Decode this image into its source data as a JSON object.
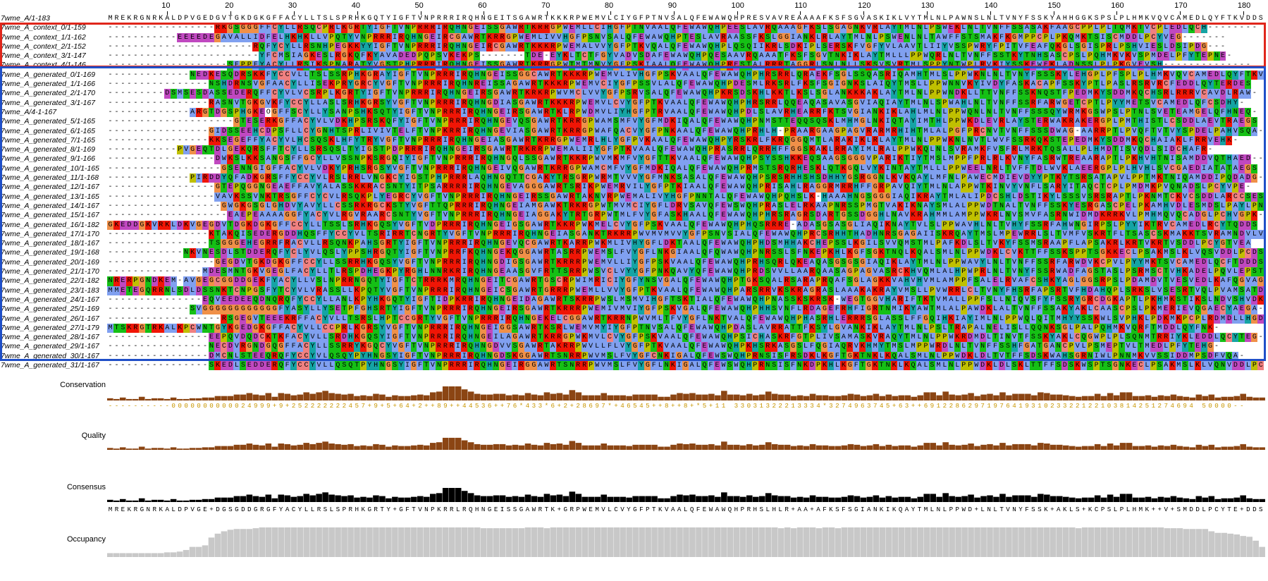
{
  "ruler": {
    "ticks": [
      "10",
      "20",
      "30",
      "40",
      "50",
      "60",
      "70",
      "80",
      "90",
      "100",
      "110",
      "120",
      "130",
      "140",
      "150",
      "160",
      "170",
      "180"
    ]
  },
  "rows": [
    {
      "name": "7wme_A/1-183",
      "seq": "MREKRGNRKALDPVGEDGVTGKDGKGFFACYLLTSLSPRHKGQTYIGFTVNPRRRIRQHNGEITSGAWRTKKKRPWEMVLCIYGFPTNVSALQFEWAWQHPRESVAVREAAAAFKSFSGVASKIKLVYTMLNLPAWNSLNLTVNYFSSKYAHHGGKSPSLPLHMKVQVCAMEDLQYFTKVDDS"
    },
    {
      "name": "7wme_A_context_0/1-159",
      "seq": "-----------------RKGSGGGFFCYLLRSQCPRLKGRTYIGFTVNPRRRIRQHNGEISSGAWRTKRRGPWEMLLCIHGFPTNVAALQFEWAWQHPEESLAVRQAAAGFKSLSGAGNKVRLAYTMLNLPSWEKLNLTVNFFSSASAKFAAGCPPLPLTQMKTVCPLEDLQCH--------"
    },
    {
      "name": "7wme_A_context_1/1-162",
      "seq": "-----------EEEEDEGAVALLIDFELHKHKLLVPQTYVNPRRRIRQHNGEIRCGAWRTKRRGPWEMLIVVHGFPSNVSALQFEWAWQHPTESLAVRAASSFKSLGGIANKLRLAYTMLNLPSWENLNLTAWFFSTSMAKFKGMPPCPLPKQMKTSISCMDDLPCYVEG-------"
    },
    {
      "name": "7wme_A_context_2/1-152",
      "seq": "-----------------------RQFYCYLLRSNHPEGKKYYIGFTVNPRRRIRQHNGEIRCGAWRTKKKRPWEMALVVYGFPTKVQALQFEWAWQHPLQSQIIKRLSDKIPLSERSKFVGFYVLAAVTLIIYVSSPWRYFPITVFEAFQKGLSGISPRLPSHVIESLDSIPDG---"
    },
    {
      "name": "7wme_A_context_3/1-147",
      "seq": "------------------------YFCMSIAGKESLRGKQFKYAVADEDPQPSVKEKPS-------TDE-EYKLTCTFGYVADVSDAFEWAWQHPQESAAVRQAAATFKSFSGVTNKIKLAYTMLLLPPWQRLNLTVNFFSSTKYTNHSASCPSLPQHMKVKVSPMDELPFYTEPNE-"
    },
    {
      "name": "7wme_A_context_4/1-146",
      "seq": "-------------------SFPPFYACYLLRSIKSPNARATYVGSTPHPRRRIRQHNGEISSGAWRTKRRGPWTMTMNVYGFPSKIAALQFEWAWQHPRESTALRRRTAGGRLSNLNLLSKSVSVRTMLSPPYNTWPLRVKIYSSKEWEKLADNSSLPLPKGVEVSH--------------"
    },
    {
      "name": "7wme_A_generated_0/1-169",
      "seq": "-------------NEDKESQDRSKKFYCCVLLTSLSSRPHKGRAYIGFTVNPRRRIRQHNGEISSGGCAWRTKKKRPWEMVLIVHGFPSKVAALQFEWAWQHPHRSRRLQRAEKFSGLSSQASRIQAMHTMLSLPPWKNLNLTVNYFSSSKYLEHGPLPFSPLPLHMKVQVCAMEDLQYFTKVDDS"
    },
    {
      "name": "7wme_A_generated_1/1-166",
      "seq": "----------------NSHDRNSVGFAACYLLISEKPRYGRCYVGFTVNPRRRIRQHNREISSAGAWRTKKKRPWEMVCIYGFPSSVLALQFEWAWQHPDESMLRKSRLFKSFSGIGNKSLAIQYTMSLLPPWNNVKYIVDYFASKACAPFSSKYPTLPASLRSRVRCFEDDLQYTERDES"
    },
    {
      "name": "7wme_A_generated_2/1-170",
      "seq": "---------DSMSESDASSEDERQFFCYVLVCSRPLKGRTYIGFTVNPRRRIRQHNGEIRSGAWRTKRKRPWVMCLVVYGFPSRVSALQFEWAWQHPKRSDSKHLKKTLKSLSGLANKKKAKLAYTMLNLPPWNDKLLTTVNFFSSKNQSTFPEDMKYSDDMKQCHSRLRRRVCAVDLRAW-"
    },
    {
      "name": "7wme_A_generated_3/1-167",
      "seq": "----------------RASNVTGKGVKFYCCYLLASLSRHKGRSYVGFTVNPRRRIRQHNGDIASGAWRTKKKRPWEMVLCVYGFPTKVAALQFEWAWQHPHRSRRLQQEAQASAVASGVIAQIAYTMLNLSPWAHLNLTVNFFSSRFARWGETCPTLPYYMETSVCAMEDLQFCSDHY-"
    },
    {
      "name": "7wme_A/4-1-167",
      "seq": "-------------ARGTDGSPHGKEOGFFSCYLLYSANPSHKSQTYIGFTVNPRRRIRQHNGEIRSGAWRTKLRPWDMVLIYHGFPTRVAALQFEWAWQHPDLSLAVRHEARRFKTSVGIANKIKLAHLMLNLPPWQNLNLTVNFFSSSQYWRMKGSWPSLPTNLSVETEAMGELQFHNEQ-"
    },
    {
      "name": "7wme_A_generated_5/1-165",
      "seq": "--------------------GTESERKGFFACYVLVDKHPSRSKQFYIGFTVNPRRRIRQHNGEVQSGAWRTKRRGPWAMSMFVYGFMDKIQALQFEWAWQHPNMSTTEQQSQSKLMHMGLNKIQTAYIMTHLPPWKDLEVRLAYSTERWAKRAKERGPLPMTHISTLCSDDLAEVTRAEGS"
    },
    {
      "name": "7wme_A_generated_6/1-165",
      "seq": "----------------GIDSSEEHCDPSFLLCYGNHTSPRLIVIVTELFTVNPKRRIRQHNGEVIASGAWRTKRRGPWAFQACVYGFPNKAALQFEWAWQHPRHLH-PRAARGAAGPAGVRARMRHIHTMLALPGFPRCNVTVNFFSSSDWAG-AARRPTLPVQFTVTVYSPDELPAHVSQA-"
    },
    {
      "name": "7wme_A_generated_7/1-165",
      "seq": "----------------KKSEGEFFYACYVLHCSQSKLHFYTRYVGFTVNPRRRIRQHNGEIASGAWRTKRRGPWEMRLHLYGFPVKAALQFEWAWQHPYRSKRLFKRQGGQMTLARAKIKLRLAYTMLNLPPWKNLNVTLWVFSSRKQKSTEPEDMKYSDDMKQCHAIAKLFRRVEHK-"
    },
    {
      "name": "7wme_A_generated_8/1-169",
      "seq": "-----------PVGEQTDLGEKQRSFFTCYLLSRSQSLTYIGSTPDPRRRIRQHNGEIRSGAWRTRKRRPWEMALIIYGFPTKVAALQFEWAWQHPRASRRLQRRHFFGGSKAKLRRAYIMLRALPPWKQLNLSVRAMKFVSFRLMRKTQSALLPLHMDTISVQDLSIDCHAFR-"
    },
    {
      "name": "7wme_A_generated_9/1-166",
      "seq": "-----------------DWKSLKKSANGSFFGCYLLVSSNPKSRGQIYIGFTVNPRRRIRQHNGQLSSGAWRTKKRPWVMKMFVYGFTTKVAALQFEWAWQHPSYSSHKKEQSAAGSGGGVPARIKTIYTMSLMPPFPRLRLKVNYFASRWTREAARAPTLPKHVHTNISAMDDVQTHAED--"
    },
    {
      "name": "7wme_A_generated_10/1-165",
      "seq": "------------------GSENNGIGFFACYVLVDKYPRHSRGSYVGFTVNPRRRIRQHNGEIVQGAWRTKRRGPWAMCMFVYGFMDKIQALQFEWAWQHPRMSTSRQRHESKLQTKGQLVYKINTAYTMLLLPPWEELNRLTVFFTDLWVKLAEERGPLPLHVHLSVCGAEDIATATAEGS"
    },
    {
      "name": "7wme_A_generated_11/1-168",
      "seq": "-------------PIRDDYQFADKGRSFFYCCYVLRSLRRLVNGKCYIGSTPHPRRRLAQHNGQTTCGAKYTRSGRPWRMTVVVYGFMNKSASALQFEWAWQHPSRSRHHSHSDHHYGSRGGNLKVKQAYLMFNLPAWECMDIEVDYYPTKYTSRSATAPVLPPTMKTNIQAMDDIPQDADG-"
    },
    {
      "name": "7wme_A_generated_12/1-167",
      "seq": "-----------------GTEPQGGNGEAEFFAVYALASSKKRACSNTYITPSARRRRIRQHNGEVAGGGAWRTSRIKPWEMRVILYGFPTKIAALQFEWAWQHPRISAHLRAGGRMRRHFFGRPAVQIYTMLNLAPPWTKINVYVNFLSARYITAQCTCPLPMDMKPVQNADSLPCYVPE-"
    },
    {
      "name": "7wme_A_generated_13/1-165",
      "seq": "-----------------VAVKSSVNKTRSGFFCYCVLRSQKPLYEGRCYVGFTVNPRRRIRQHNGEIRSSGAWRTAKNVRPWEMALIVYHGFPNNTALQFEWAWQHPQHSLK-HAAAHNGSGGGIAQIKRAYTMLALIPDCSHLDSTIKYLSSSVSRSRAPTLPKNMTCKVCSDDLARCCSESQ"
    },
    {
      "name": "7wme_A_generated_14/1-167",
      "seq": "------------------GWGKGSGLGHDVYAVYLLCSSRKRGCKSTYVGFTTQPRRRIRQHNGEIAMGAWKTRKRGPWTMVMCIYGFLDRVSAVQFEWSWQHPRASLELRKAAPNRSSPMGTVAKIKNAYSMLALPPWDTNALTVNFFSSKYESRGASCPELPKAMHVDLESMDSLPAYLPNS-"
    },
    {
      "name": "7wme_A_generated_15/1-167",
      "seq": "-------------------EAEPEAAAAGGFYACYVLRGVRAARCSNTYVGFTVNPRRRIRQHNGEIAGGAKYTRTGRPWTMLFVYGFASKHAALQFEWAWQHPHRSRAGRSDARTGSSDGGHLNAVKRAHMMLAMPPWKRLNVSMVFASRNWIDMDKRRKVLPMHMQVQCADGLPCHVGPK-"
    },
    {
      "name": "7wme_A_generated_16/1-182",
      "seq": "GKEDDGKVRKLDKVGEGDVTDGKDGKGFFCCYLLTSSLSRHKGQSYVGFTVDPRRRIRQHNGEIGSGAWRTKKRPWKMELCVYGFPSKVAALQFEWAWQHPHQSRRRE-ADASGSASGLIAQIKNAYTVLSLPPWAVHLNLTVHYFSSRFAHWNGIRPSLPYYIKTRVCAMEDLRCYTQDDS"
    },
    {
      "name": "7wme_A_generated_17/1-170",
      "seq": "----------------KTAKQISEDERGDDHQSFFYCCYVLTSRIRRTCNGRTYVGFTVNPRRRIRQHNGEIASGANKTRKRRPWVMVMVVYGFPSNVSIALQFEWAWQHPRCSRHHTHADHNRSGAGAIISKRQAYTMSLMPEWRRLSLTVMFVSKRTFLTSASCSKMAKKTSVRAMNDVLVCQA-"
    },
    {
      "name": "7wme_A_generated_18/1-167",
      "seq": "----------------TSGGGEHEGRRFRACVLLRSQNKPAHSGRTYIGFTVNPRRRIRQHNGEVQCGAWRTKARRPWKMLIVHYGFLDKTAALQFEWAWQHPHDSMHHAKCHEPSSLKGILSVVQMSTMLPAFKDLSLTVKYFSSMSRAAPFLAPSAKRLKRTVKRTVSDDLPCYGTVEA"
    },
    {
      "name": "7wme_A_generated_19/1-168",
      "seq": "------------NKVNESDLSTDDERQFYCLYVLQSLYPPSHRGQTYIGFTVNPRRFKQHNGEKQGGAWRTASRRPWEMSLFVYGFLNKGIAALQFQWAWQHPNRSSLSFNKEPKHLKGFSGKTNQLKQALSMLNLPPWDKLCVKTTFFSSKSPPTSGKKECLPSAKMSLKLVQSVDDLPCDSL--"
    },
    {
      "name": "7wme_A_generated_20/1-169",
      "seq": "-----------------GEGDVTGKDGKGFFCCYLLSSRRHKGQSYVGFTVNPRRRIRQHNGDIGSGAWRTKRRRPWEMVLLIYGFPSKVAALQFEWAWQHPRHSQRLQKEAQASGSGSGIAQIKLAYTMLNLPPWAVYLNLTVNFFSSRFARWDVKCPVLPYYMKTSVCAMEDLQCFTDDDS"
    },
    {
      "name": "7wme_A_generated_21/1-170",
      "seq": "---------------MDESMNTGKVGEGLFACYLLTLRSPDHEGKPYRGHLNNRKRIRQHNGEAASGVFRTTSRRPWSVCLVYYGFPNKQAVYQFEWAWQHPRDSVVLLAARQAASAGPAGVASRCKHVQMLALHPWPRLNLTVNYFSSRWADFAGSTASLPSRMSCTVHKADELPQVLEPSTA"
    },
    {
      "name": "7wme_A_generated_22/1-182",
      "seq": "NRERPGNDKEM-AVGEGCGGDDGEKFYACYLLVSLNPRRNGQTYIGFTCTRRRKMRQHNGEITCGAWRTGSCRPWIMRICIYGFYNSVGALQFEWAWQHPTGKSQALRSARAPRQAFSGLAGKKVAHVHVMLAMPPFSALELRVAFCSHKYAGLGGSRPSLPDAMDVTVESVEDLKAFQGVAGQ"
    },
    {
      "name": "7wme_A_generated_23/1-183",
      "seq": "MMETEGQRRNLSDLDSSNKTCNPGSFYTCYVLVRASSLLKPQTYVGFTVNPRRRIRQHNGEICSGAWRTGRRRPWEMLLVVYGFPTKVAALQFEWAWQHPARSRRVKSKRAGRASLAAAKAKRAYVMSLLPVWRRLCLTVNYFHSRFAPSRTVFHDAHQPLSRKSLVSESRTVQLPVAMSATD"
    },
    {
      "name": "7wme_A_generated_24/1-167",
      "seq": "---------------EQVEEDEEQDNQRQFYCCYLLANLKPYHKGQTYIGFTIDPKRRIRQHNGEIDAGAWRTSKRRPWSLMSMVIHGFTSKTIALQFEWAWQHPNASSKSKRSK-WEGTGGVHARIFTKTVMALLPPFSLLNIQVSFYFSSRYGRCDGKAPTLPKHMKSTIKSLNDVSHVDKV-"
    },
    {
      "name": "7wme_A_generated_25/1-169",
      "seq": "-------------SVGGGGGGGGGGGGFYASYLLYSETPFGHSRTYIGFTVNPRRRIRQHNGEIRSGAWRTKRRRPWEMIVMVIYGFPSKVGALQFEWAWQHPHHSVNFLRDAGEFRHFIGRTNMIKYAWTMLALPAWDKLALTVNFFSSAKYAKLCAASCPSLPKMERIEVQGAECYAEGA-"
    },
    {
      "name": "7wme_A_generated_26/1-167",
      "seq": "------------------RSGEGVTEEEKRFFACYVLLTSRSLHPTCCGRTYVGFTVNPRRRIRQHNGEKELCGGAWRTKRRNPWVMLTFVYGFLNKTVALQFEWAWQHPHASRHLERRRSGLASSLFFGQIHKIAYIMLNLPPWQLQITMHYYSSKWLSVPHKLPDKMKPCPLRDMDLLHGDANR-"
    },
    {
      "name": "7wme_A_generated_27/1-179",
      "seq": "MTSKRGTRKALKPCWNTGYKGEDGKGFFACYVLLCCPRLKGRSYVGFTVNPRRRIRQHNGEIGGSAWRTKSRLWEMVMYIYGFPTNVSALQFEWAWQHPDASLAVRRATTFKSYLGVANKIKLAYTMLNLPSLTRAPALNELISLLQQNKSGLPALPQHMKVQRFTMDDLQYFNK-"
    },
    {
      "name": "7wme_A_generated_28/1-167",
      "seq": "----------------EEPQVDQDCKTKFACYVLLSRDHKGQSYIGFTVNPRRRIRQHNGEILAGAWRTKRRGPWKMVLCVYGFPSKVAALQFEWAWQHPSICHASKRFGTPLIVSAMASKVRAQYTMLNLPPWKRDMDLTINVTFSSKYAKLCQGWPLPLSQNMTRRIYKLEDDLQCYTEG-"
    },
    {
      "name": "7wme_A_generated_29/1-167",
      "seq": "----------------NECDVRGNDGQGFFACYLLSSRRYKGQCYVGFTVNPRRRIRQHNGDVVSGAWRTAKRRPWVLLFLVYGFPTKVAALQFEWAWQHPKHSRKASGSLFQGIAQRVKHMYTMSLMPPWRDLNLTVNFFSSHFGATGANCPVLPSMEPTVLTMEDLPFYTEHG-"
    },
    {
      "name": "7wme_A_generated_30/1-167",
      "seq": "----------------DMCNLSTEEQRQFYCCYVLQSQYPYHNGSYIGFTVNPRRRIRQHNGDSKGGAWRTSNRRPWVMSLFVYGFCNKIGALQFEWSWQHPRNSISFRSDKLKGFTGKTNKLKQALSMLNLPPWDKLDLTVTFFSDSKWAHSGRNIWLPNNMKVVSSIDDMPSDFVQA-"
    },
    {
      "name": "7wme_A_generated_31/1-167",
      "seq": "----------------SKEDLSEDDERQFYCCYVLLQSQTPYHNGSYIGFTVNPRRRIRQHNGEIRGGAWRTSNRRPWVMSLFVYGFLNKIGALQFEWSWQHPRNSISFNKDPKHLKGFTGKTNKLKQALSMLNLPPWDKLDLSKLTTFFSDSKWSPTSGNKECLPSAKMSLKLVQNVDDLPCDSLAT-"
    }
  ],
  "tracks": {
    "conservation_label": "Conservation",
    "quality_label": "Quality",
    "consensus_label": "Consensus",
    "occupancy_label": "Occupancy",
    "conservation_string": "----------0000000000024999+9+252222222457+9+5+64+2++89++44536++76*433*6+2+28697*+46545++8++8+*5+11 33031322213334*3274963745+63++6912286297197641931023322122103814251274694 50000--",
    "consensus_string": "MREKRGNRKALDPVGE+DGSGDDGRGFYACYLLRSLSPRHKGRTY+GFTVNPKRRLRQHNGEISSGAWRTK+GRPWEMVLCVYGFPTKVAALQFEWAWQHPRHSLHLR+AA+AFKSFSGIANKIKQAYTMLNLPPWD+LNLTVNYFSSK+AKLS+KCPSLPLHMK++V+SMDDLPCYTE+DDS"
  },
  "colors": {
    "red_box": "#e0261b",
    "blue_box": "#1f4fc8",
    "conservation_bar": "#f0d000",
    "conservation_low": "#8b4513",
    "consensus_bar": "#000000",
    "occupancy_bar": "#c8c8c8"
  }
}
